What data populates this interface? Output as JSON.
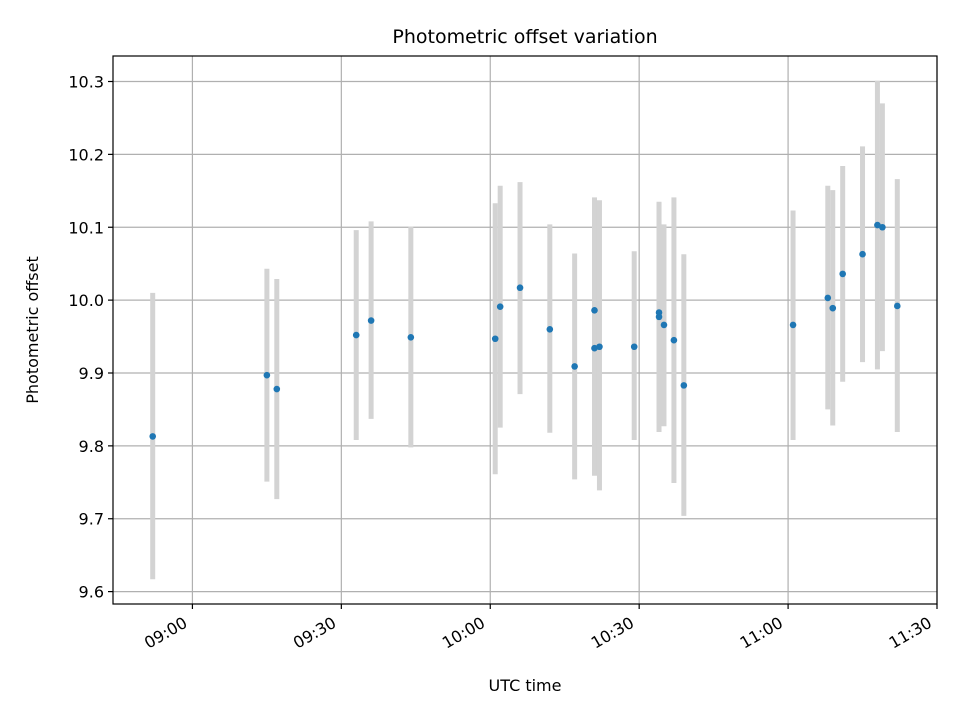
{
  "chart_data": {
    "type": "scatter",
    "title": "Photometric offset variation",
    "xlabel": "UTC time",
    "ylabel": "Photometric offset",
    "xlim": [
      "08:44",
      "11:30"
    ],
    "ylim": [
      9.583,
      10.335
    ],
    "grid": true,
    "x_ticks": [
      "09:00",
      "09:30",
      "10:00",
      "10:30",
      "11:00",
      "11:30"
    ],
    "y_ticks": [
      "9.6",
      "9.7",
      "9.8",
      "9.9",
      "10.0",
      "10.1",
      "10.2",
      "10.3"
    ],
    "colors": {
      "marker": "#1f77b4",
      "errorbar": "#d3d3d3",
      "grid": "#b0b0b0"
    },
    "points": [
      {
        "x": "08:52",
        "y": 9.813,
        "y_low": 9.617,
        "y_high": 10.01
      },
      {
        "x": "09:15",
        "y": 9.897,
        "y_low": 9.751,
        "y_high": 10.043
      },
      {
        "x": "09:17",
        "y": 9.878,
        "y_low": 9.727,
        "y_high": 10.029
      },
      {
        "x": "09:33",
        "y": 9.952,
        "y_low": 9.808,
        "y_high": 10.096
      },
      {
        "x": "09:36",
        "y": 9.972,
        "y_low": 9.837,
        "y_high": 10.108
      },
      {
        "x": "09:44",
        "y": 9.949,
        "y_low": 9.798,
        "y_high": 10.101
      },
      {
        "x": "10:01",
        "y": 9.947,
        "y_low": 9.761,
        "y_high": 10.133
      },
      {
        "x": "10:02",
        "y": 9.991,
        "y_low": 9.825,
        "y_high": 10.157
      },
      {
        "x": "10:06",
        "y": 10.017,
        "y_low": 9.871,
        "y_high": 10.162
      },
      {
        "x": "10:12",
        "y": 9.96,
        "y_low": 9.818,
        "y_high": 10.104
      },
      {
        "x": "10:17",
        "y": 9.909,
        "y_low": 9.754,
        "y_high": 10.064
      },
      {
        "x": "10:21",
        "y": 9.986,
        "y_low": 9.832,
        "y_high": 10.141
      },
      {
        "x": "10:21",
        "y": 9.934,
        "y_low": 9.759,
        "y_high": 10.109
      },
      {
        "x": "10:22",
        "y": 9.936,
        "y_low": 9.739,
        "y_high": 10.137
      },
      {
        "x": "10:29",
        "y": 9.936,
        "y_low": 9.808,
        "y_high": 10.067
      },
      {
        "x": "10:34",
        "y": 9.977,
        "y_low": 9.819,
        "y_high": 10.135
      },
      {
        "x": "10:34",
        "y": 9.983,
        "y_low": 9.831,
        "y_high": 10.134
      },
      {
        "x": "10:35",
        "y": 9.966,
        "y_low": 9.827,
        "y_high": 10.104
      },
      {
        "x": "10:37",
        "y": 9.945,
        "y_low": 9.749,
        "y_high": 10.141
      },
      {
        "x": "10:39",
        "y": 9.883,
        "y_low": 9.704,
        "y_high": 10.063
      },
      {
        "x": "11:01",
        "y": 9.966,
        "y_low": 9.808,
        "y_high": 10.123
      },
      {
        "x": "11:08",
        "y": 10.003,
        "y_low": 9.85,
        "y_high": 10.157
      },
      {
        "x": "11:09",
        "y": 9.989,
        "y_low": 9.828,
        "y_high": 10.151
      },
      {
        "x": "11:11",
        "y": 10.036,
        "y_low": 9.888,
        "y_high": 10.184
      },
      {
        "x": "11:15",
        "y": 10.063,
        "y_low": 9.915,
        "y_high": 10.211
      },
      {
        "x": "11:18",
        "y": 10.103,
        "y_low": 9.905,
        "y_high": 10.301
      },
      {
        "x": "11:19",
        "y": 10.1,
        "y_low": 9.93,
        "y_high": 10.27
      },
      {
        "x": "11:22",
        "y": 9.992,
        "y_low": 9.819,
        "y_high": 10.166
      }
    ]
  }
}
